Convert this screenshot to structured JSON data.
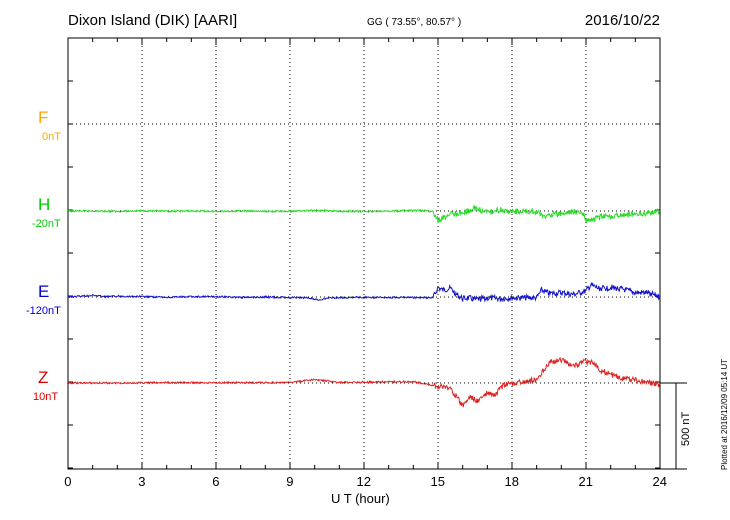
{
  "header": {
    "station": "Dixon Island (DIK)  [AARI]",
    "coords": "GG ( 73.55°,  80.57° )",
    "date": "2016/10/22"
  },
  "side_note": "Plotted at 2016/12/09 05:14 UT",
  "scale_label": "500 nT",
  "colors": {
    "F": "#ffa500",
    "H": "#00dd00",
    "E": "#0000cc",
    "Z": "#dd0000"
  },
  "chart_data": {
    "type": "line",
    "xlabel": "U T (hour)",
    "xlim": [
      0,
      24
    ],
    "xticks": [
      "0",
      "3",
      "6",
      "9",
      "12",
      "15",
      "18",
      "21",
      "24"
    ],
    "y_unit": "nT",
    "scale_bar_nT": 500,
    "series": [
      {
        "name": "F",
        "offset_label": "0nT",
        "color": "#ffa500",
        "x": [],
        "values": []
      },
      {
        "name": "H",
        "offset_label": "-20nT",
        "color": "#22dd22",
        "x": [
          0,
          1,
          2,
          3,
          4,
          5,
          6,
          7,
          8,
          9,
          10,
          11,
          12,
          13,
          14,
          14.8,
          15,
          15.2,
          15.5,
          16,
          16.5,
          17,
          17.5,
          18,
          19,
          19.3,
          19.6,
          20,
          20.5,
          20.9,
          21,
          21.2,
          21.6,
          22,
          22.5,
          23,
          23.5,
          24
        ],
        "values": [
          0,
          0,
          -2,
          2,
          -2,
          0,
          -2,
          0,
          -2,
          -2,
          5,
          -2,
          -2,
          -2,
          5,
          -3,
          -55,
          -45,
          -15,
          -10,
          15,
          -10,
          8,
          -2,
          -5,
          -35,
          -18,
          -20,
          0,
          -20,
          -60,
          -55,
          -35,
          -30,
          -25,
          -15,
          -12,
          0
        ]
      },
      {
        "name": "E",
        "offset_label": "-120nT",
        "color": "#1111cc",
        "x": [
          0,
          0.5,
          1,
          1.5,
          2,
          3,
          4,
          5,
          6,
          7,
          8,
          9,
          9.8,
          10.2,
          10.5,
          11,
          12,
          13,
          14,
          14.8,
          15,
          15.2,
          15.5,
          15.8,
          16,
          16.2,
          16.5,
          17,
          17.5,
          18,
          19,
          19.2,
          19.5,
          20,
          20.5,
          21,
          21.2,
          21.5,
          22,
          22.5,
          23,
          23.5,
          24
        ],
        "values": [
          0,
          5,
          10,
          2,
          5,
          2,
          -2,
          2,
          2,
          -2,
          0,
          -3,
          -5,
          -20,
          -5,
          -3,
          -2,
          -2,
          -3,
          -5,
          55,
          40,
          50,
          10,
          -10,
          -5,
          -15,
          -5,
          -10,
          -5,
          -5,
          40,
          20,
          25,
          15,
          35,
          70,
          50,
          55,
          45,
          25,
          25,
          0
        ]
      },
      {
        "name": "Z",
        "offset_label": "10nT",
        "color": "#dd2222",
        "x": [
          0,
          2,
          4,
          6,
          8,
          9,
          10,
          11,
          12,
          14,
          15,
          15.5,
          16,
          16.3,
          16.6,
          17,
          17.3,
          17.6,
          18,
          18.5,
          19,
          19.5,
          20,
          20.5,
          21,
          21.3,
          21.6,
          22,
          22.5,
          23,
          23.5,
          24
        ],
        "values": [
          0,
          0,
          2,
          2,
          2,
          3,
          20,
          3,
          5,
          8,
          -20,
          -30,
          -135,
          -80,
          -105,
          -60,
          -75,
          -20,
          0,
          5,
          20,
          120,
          135,
          100,
          125,
          115,
          75,
          50,
          30,
          15,
          5,
          -10
        ]
      }
    ]
  }
}
